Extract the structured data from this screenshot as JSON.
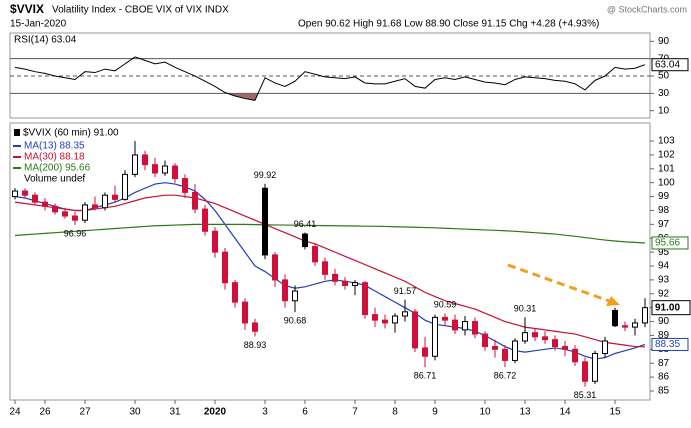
{
  "header": {
    "symbol": "$VVIX",
    "name": "Volatility Index - CBOE VIX of VIX INDX",
    "date": "15-Jan-2020",
    "quote": "Open 90.62 High 91.68 Low 88.90 Close 91.15 Chg +4.28 (+4.93%)",
    "source": "@ StockCharts.com"
  },
  "chart_data": [
    {
      "type": "line",
      "title": "RSI(14) 63.04",
      "color": "#000000",
      "fill_color": "#a06a6a",
      "ylim": [
        1.6,
        99.6
      ],
      "yticks": [
        10,
        30,
        50,
        70,
        90
      ],
      "reference_lines": [
        70,
        50,
        30
      ],
      "tag": 63.04,
      "values": [
        60,
        58,
        55,
        53,
        50,
        48,
        46,
        55,
        54,
        58,
        56,
        64,
        72,
        68,
        64,
        66,
        60,
        55,
        50,
        44,
        38,
        31,
        27,
        24,
        22,
        48,
        42,
        38,
        44,
        55,
        52,
        49,
        48,
        47,
        49,
        42,
        41,
        41,
        44,
        47,
        38,
        36,
        46,
        48,
        46,
        49,
        46,
        43,
        42,
        40,
        46,
        49,
        48,
        47,
        45,
        44,
        41,
        34,
        45,
        50,
        60,
        58,
        59,
        63.04
      ]
    },
    {
      "type": "candlestick",
      "name": "$VVIX (60 min) 91.00",
      "tag": {
        "value": 91,
        "label": "91.00"
      },
      "up_color": "#000000",
      "down_color": "#d0103a",
      "volume_label": "Volume undef",
      "ylim": [
        84.35,
        104.3
      ],
      "yticks": [
        85,
        86,
        87,
        88,
        89,
        90,
        91,
        92,
        93,
        94,
        95,
        96,
        97,
        98,
        99,
        100,
        101,
        102,
        103
      ],
      "categories": [
        "24",
        null,
        null,
        "26",
        null,
        null,
        null,
        "27",
        null,
        null,
        null,
        null,
        "30",
        null,
        null,
        null,
        "31",
        null,
        null,
        null,
        "2020",
        null,
        null,
        null,
        null,
        "3",
        null,
        null,
        null,
        "6",
        null,
        null,
        null,
        null,
        "7",
        null,
        null,
        null,
        "8",
        null,
        null,
        null,
        "9",
        null,
        null,
        null,
        null,
        "10",
        null,
        null,
        null,
        "13",
        null,
        null,
        null,
        "14",
        null,
        null,
        null,
        null,
        "15",
        null,
        null,
        null
      ],
      "open": [
        99.0,
        99.4,
        99.1,
        98.6,
        98.3,
        97.9,
        97.6,
        97.3,
        98.4,
        98.2,
        99.1,
        98.8,
        100.6,
        102.0,
        101.3,
        100.7,
        101.2,
        100.3,
        99.3,
        98.1,
        96.5,
        95.0,
        92.8,
        91.4,
        89.9,
        99.6,
        94.8,
        93.0,
        91.5,
        96.3,
        95.4,
        94.3,
        93.4,
        92.9,
        92.6,
        92.8,
        90.5,
        90.1,
        89.9,
        90.4,
        90.7,
        88.1,
        87.5,
        90.3,
        90.1,
        89.4,
        90.0,
        89.1,
        88.2,
        88.0,
        87.2,
        88.6,
        89.2,
        88.9,
        88.7,
        88.2,
        88.0,
        87.1,
        85.7,
        87.7,
        90.8,
        89.7,
        89.6,
        89.9
      ],
      "high": [
        99.6,
        99.6,
        99.3,
        98.9,
        98.5,
        98.2,
        97.9,
        98.6,
        99.0,
        99.3,
        99.8,
        100.9,
        103.0,
        102.3,
        101.8,
        101.6,
        101.4,
        100.6,
        99.9,
        98.4,
        96.8,
        95.3,
        93.0,
        91.7,
        90.2,
        99.92,
        95.0,
        93.4,
        92.6,
        96.41,
        95.6,
        94.6,
        93.8,
        93.2,
        93.0,
        92.9,
        91.0,
        90.5,
        90.6,
        91.57,
        90.9,
        88.9,
        90.5,
        90.59,
        90.5,
        90.4,
        90.3,
        89.3,
        88.7,
        88.3,
        88.8,
        90.31,
        89.5,
        89.3,
        89.0,
        88.6,
        88.3,
        87.4,
        87.9,
        88.9,
        91.0,
        90.0,
        90.2,
        91.68
      ],
      "low": [
        98.8,
        98.9,
        98.4,
        98.0,
        97.7,
        97.4,
        96.96,
        97.1,
        98.0,
        98.0,
        98.6,
        98.7,
        100.4,
        100.9,
        100.4,
        100.5,
        100.0,
        98.9,
        97.8,
        96.2,
        94.6,
        92.3,
        91.0,
        89.4,
        88.93,
        94.5,
        92.5,
        91.0,
        90.68,
        95.2,
        94.0,
        93.0,
        92.6,
        92.3,
        91.9,
        90.2,
        89.6,
        89.5,
        89.2,
        90.0,
        87.8,
        86.71,
        87.2,
        89.7,
        89.1,
        89.0,
        88.8,
        87.9,
        87.4,
        86.72,
        87.0,
        88.4,
        88.6,
        88.4,
        87.9,
        87.5,
        86.8,
        85.31,
        85.5,
        87.4,
        89.6,
        89.3,
        89.0,
        89.6
      ],
      "close": [
        99.4,
        99.1,
        98.6,
        98.3,
        97.9,
        97.6,
        97.3,
        98.4,
        98.2,
        99.1,
        98.8,
        100.6,
        102.0,
        101.3,
        100.7,
        101.2,
        100.3,
        99.3,
        98.1,
        96.5,
        95.0,
        92.8,
        91.4,
        89.9,
        89.3,
        94.8,
        93.0,
        91.5,
        92.2,
        95.4,
        94.3,
        93.4,
        92.9,
        92.6,
        92.8,
        90.5,
        90.1,
        89.9,
        90.4,
        90.7,
        88.1,
        87.5,
        90.3,
        90.1,
        89.4,
        90.0,
        89.1,
        88.2,
        88.0,
        87.2,
        88.6,
        89.2,
        88.9,
        88.7,
        88.2,
        88.0,
        87.1,
        85.7,
        87.7,
        88.6,
        89.7,
        89.6,
        89.9,
        91.0
      ],
      "annotations": [
        {
          "index": 6,
          "value": 96.96,
          "position": "below"
        },
        {
          "index": 24,
          "value": 88.93,
          "position": "below"
        },
        {
          "index": 25,
          "value": 99.92,
          "position": "above"
        },
        {
          "index": 28,
          "value": 90.68,
          "position": "below"
        },
        {
          "index": 29,
          "value": 96.41,
          "position": "above"
        },
        {
          "index": 39,
          "value": 91.57,
          "position": "above"
        },
        {
          "index": 41,
          "value": 86.71,
          "position": "below"
        },
        {
          "index": 43,
          "value": 90.59,
          "position": "above"
        },
        {
          "index": 49,
          "value": 86.72,
          "position": "below"
        },
        {
          "index": 51,
          "value": 90.31,
          "position": "above"
        },
        {
          "index": 57,
          "value": 85.31,
          "position": "below"
        }
      ],
      "series": [
        {
          "name": "MA(13) 88.35",
          "color": "#1f3fbf",
          "tag": 88.35,
          "values": [
            99.0,
            98.9,
            98.7,
            98.5,
            98.3,
            98.1,
            98.0,
            98.0,
            98.2,
            98.4,
            98.6,
            98.9,
            99.3,
            99.6,
            99.9,
            100.0,
            99.9,
            99.7,
            99.4,
            98.8,
            98.0,
            97.0,
            96.0,
            95.0,
            94.0,
            93.6,
            93.1,
            92.6,
            92.4,
            92.5,
            92.7,
            92.9,
            93.0,
            92.9,
            92.8,
            92.6,
            92.2,
            91.8,
            91.4,
            91.0,
            90.6,
            90.1,
            89.8,
            89.7,
            89.6,
            89.5,
            89.3,
            89.0,
            88.6,
            88.2,
            87.9,
            87.8,
            87.9,
            88.0,
            88.1,
            88.0,
            87.8,
            87.5,
            87.3,
            87.4,
            87.7,
            87.9,
            88.1,
            88.35
          ]
        },
        {
          "name": "MA(30) 88.18",
          "color": "#c8102e",
          "values": [
            98.6,
            98.5,
            98.4,
            98.3,
            98.2,
            98.1,
            98.0,
            98.0,
            98.1,
            98.2,
            98.3,
            98.5,
            98.7,
            98.9,
            99.0,
            99.1,
            99.1,
            99.0,
            98.9,
            98.7,
            98.5,
            98.2,
            97.9,
            97.6,
            97.3,
            97.0,
            96.7,
            96.4,
            96.1,
            95.8,
            95.6,
            95.3,
            95.0,
            94.7,
            94.4,
            94.1,
            93.8,
            93.5,
            93.2,
            92.9,
            92.5,
            92.1,
            91.8,
            91.5,
            91.3,
            91.1,
            90.9,
            90.6,
            90.3,
            90.0,
            89.8,
            89.6,
            89.5,
            89.4,
            89.3,
            89.2,
            89.1,
            88.9,
            88.7,
            88.5,
            88.4,
            88.3,
            88.2,
            88.18
          ]
        },
        {
          "name": "MA(200) 95.66",
          "color": "#2a7a1a",
          "tag": 95.66,
          "values": [
            96.2,
            96.25,
            96.3,
            96.35,
            96.4,
            96.45,
            96.5,
            96.55,
            96.6,
            96.65,
            96.7,
            96.75,
            96.8,
            96.85,
            96.9,
            96.92,
            96.95,
            96.97,
            97.0,
            97.0,
            97.0,
            97.0,
            97.0,
            97.0,
            96.98,
            96.97,
            96.96,
            96.95,
            96.94,
            96.93,
            96.92,
            96.91,
            96.9,
            96.89,
            96.88,
            96.87,
            96.86,
            96.85,
            96.83,
            96.81,
            96.79,
            96.77,
            96.75,
            96.72,
            96.69,
            96.66,
            96.63,
            96.6,
            96.57,
            96.54,
            96.5,
            96.45,
            96.4,
            96.35,
            96.3,
            96.22,
            96.14,
            96.05,
            95.96,
            95.87,
            95.8,
            95.74,
            95.7,
            95.66
          ]
        }
      ]
    }
  ]
}
